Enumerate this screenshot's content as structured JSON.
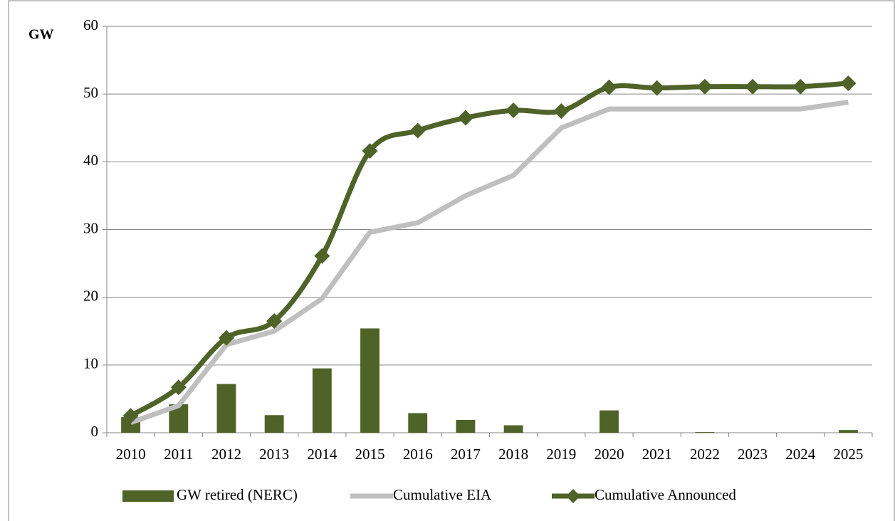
{
  "chart_data": {
    "type": "combo",
    "y_label": "GW",
    "categories": [
      "2010",
      "2011",
      "2012",
      "2013",
      "2014",
      "2015",
      "2016",
      "2017",
      "2018",
      "2019",
      "2020",
      "2021",
      "2022",
      "2023",
      "2024",
      "2025"
    ],
    "series": [
      {
        "name": "GW retired (NERC)",
        "type": "bar",
        "color": "#4f6228",
        "values": [
          2.3,
          4.2,
          7.2,
          2.6,
          9.5,
          15.4,
          2.9,
          1.9,
          1.1,
          0,
          3.3,
          0,
          0.1,
          0,
          0,
          0.4
        ]
      },
      {
        "name": "Cumulative EIA",
        "type": "line",
        "color": "#bfbfbf",
        "values": [
          1.5,
          4,
          13,
          15,
          19.8,
          29.6,
          31,
          35,
          38,
          45,
          47.8,
          47.8,
          47.8,
          47.8,
          47.8,
          48.8
        ]
      },
      {
        "name": "Cumulative Announced",
        "type": "line",
        "marker": "diamond",
        "color": "#4f6228",
        "values": [
          2.5,
          6.7,
          14,
          16.5,
          26.1,
          41.6,
          44.6,
          46.5,
          47.6,
          47.5,
          51,
          50.9,
          51.1,
          51.1,
          51.1,
          51.6
        ]
      }
    ],
    "ylim": [
      0,
      60
    ],
    "yticks": [
      0,
      10,
      20,
      30,
      40,
      50,
      60
    ],
    "grid": true,
    "legend": "bottom"
  }
}
